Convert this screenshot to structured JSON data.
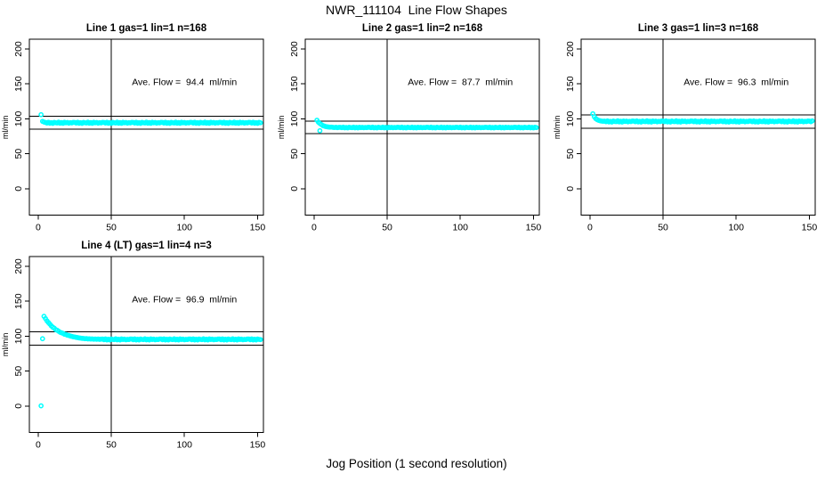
{
  "figure": {
    "title": "NWR_111104  Line Flow Shapes",
    "xlabel": "Jog Position (1 second resolution)",
    "background": "#ffffff",
    "point_color": "#00ffff",
    "axis_color": "#000000"
  },
  "chart_data": [
    {
      "type": "scatter",
      "title": "Line 1 gas=1 lin=1 n=168",
      "annotation": "Ave. Flow =  94.4  ml/min",
      "ave_flow": 94.4,
      "ylabel": "ml/min",
      "x_ticks": [
        0,
        50,
        100,
        150
      ],
      "y_ticks": [
        0,
        50,
        100,
        150,
        200
      ],
      "xlim": [
        -6,
        154
      ],
      "ylim": [
        -38,
        214
      ],
      "ref_hlines": [
        103.8,
        85.0
      ],
      "ref_vline": 50,
      "legend": null,
      "grid": false,
      "special_points": [
        [
          2,
          106.0
        ]
      ],
      "x_start": 3,
      "x_step": 1,
      "y_values": [
        96.5,
        95.4,
        94.9,
        94.0,
        95.2,
        93.7,
        94.6,
        93.5,
        95.0,
        94.4,
        94.1,
        95.3,
        93.8,
        94.7,
        93.6,
        95.1,
        94.3,
        94.8,
        93.9,
        94.5,
        94.2,
        95.0,
        94.9,
        94.0,
        95.2,
        93.7,
        94.6,
        93.5,
        95.0,
        94.4,
        94.1,
        95.3,
        93.8,
        94.7,
        93.6,
        95.1,
        94.3,
        94.8,
        93.9,
        94.5,
        94.2,
        95.0,
        94.9,
        94.0,
        95.2,
        93.7,
        94.6,
        93.5,
        95.0,
        94.4,
        94.1,
        95.3,
        93.8,
        94.7,
        93.6,
        95.1,
        94.3,
        94.8,
        93.9,
        94.5,
        94.2,
        95.0,
        94.9,
        94.0,
        95.2,
        93.7,
        94.6,
        93.5,
        95.0,
        94.4,
        94.1,
        95.3,
        93.8,
        94.7,
        93.6,
        95.1,
        94.3,
        94.8,
        93.9,
        94.5,
        94.2,
        95.0,
        94.9,
        94.0,
        95.2,
        93.7,
        94.6,
        93.5,
        95.0,
        94.4,
        94.1,
        95.3,
        93.8,
        94.7,
        93.6,
        95.1,
        94.3,
        94.8,
        93.9,
        94.5,
        94.2,
        95.0,
        94.9,
        94.0,
        95.2,
        93.7,
        94.6,
        93.5,
        95.0,
        94.4,
        94.1,
        95.3,
        93.8,
        94.7,
        93.6,
        95.1,
        94.3,
        94.8,
        93.9,
        94.5,
        94.2,
        95.0,
        94.9,
        94.0,
        95.2,
        93.7,
        94.6,
        93.5,
        95.0,
        94.4,
        94.1,
        95.3,
        93.8,
        94.7,
        93.6,
        95.1,
        94.3,
        94.8,
        93.9,
        94.5,
        94.2,
        95.0,
        94.9,
        94.0,
        95.2,
        93.7,
        94.6,
        93.5,
        95.0,
        94.4
      ]
    },
    {
      "type": "scatter",
      "title": "Line 2 gas=1 lin=2 n=168",
      "annotation": "Ave. Flow =  87.7  ml/min",
      "ave_flow": 87.7,
      "ylabel": "ml/min",
      "x_ticks": [
        0,
        50,
        100,
        150
      ],
      "y_ticks": [
        0,
        50,
        100,
        150,
        200
      ],
      "xlim": [
        -6,
        154
      ],
      "ylim": [
        -38,
        214
      ],
      "ref_hlines": [
        96.5,
        78.9
      ],
      "ref_vline": 50,
      "legend": null,
      "grid": false,
      "special_points": [
        [
          4,
          83.0
        ]
      ],
      "x_start": 2,
      "x_step": 1,
      "y_values": [
        98.1,
        95.2,
        93.4,
        91.9,
        90.4,
        89.7,
        89.0,
        88.6,
        88.3,
        88.1,
        88.2,
        87.8,
        87.6,
        88.0,
        87.4,
        87.9,
        87.9,
        87.4,
        88.1,
        87.2,
        87.7,
        87.1,
        88.0,
        87.6,
        87.4,
        88.1,
        87.2,
        87.8,
        87.1,
        88.0,
        87.5,
        87.8,
        87.3,
        87.7,
        87.5,
        88.0,
        87.9,
        87.4,
        88.1,
        87.2,
        87.7,
        87.1,
        88.0,
        87.6,
        87.4,
        88.1,
        87.2,
        87.8,
        87.1,
        88.0,
        87.5,
        87.8,
        87.3,
        87.7,
        87.5,
        88.0,
        87.9,
        87.4,
        88.1,
        87.2,
        87.7,
        87.1,
        88.0,
        87.6,
        87.4,
        88.1,
        87.2,
        87.8,
        87.1,
        88.0,
        87.5,
        87.8,
        87.3,
        87.7,
        87.5,
        88.0,
        87.9,
        87.4,
        88.1,
        87.2,
        87.7,
        87.1,
        88.0,
        87.6,
        87.4,
        88.1,
        87.2,
        87.8,
        87.1,
        88.0,
        87.5,
        87.8,
        87.3,
        87.7,
        87.5,
        88.0,
        87.9,
        87.4,
        88.1,
        87.2,
        87.7,
        87.1,
        88.0,
        87.6,
        87.4,
        88.1,
        87.2,
        87.8,
        87.1,
        88.0,
        87.5,
        87.8,
        87.3,
        87.7,
        87.5,
        88.0,
        87.9,
        87.4,
        88.1,
        87.2,
        87.7,
        87.1,
        88.0,
        87.6,
        87.4,
        88.1,
        87.2,
        87.8,
        87.1,
        88.0,
        87.5,
        87.8,
        87.3,
        87.7,
        87.5,
        88.0,
        87.9,
        87.4,
        88.1,
        87.2,
        87.7,
        87.1,
        88.0,
        87.6,
        87.4,
        88.1,
        87.2,
        87.8,
        87.1,
        88.0,
        87.5
      ]
    },
    {
      "type": "scatter",
      "title": "Line 3 gas=1 lin=3 n=168",
      "annotation": "Ave. Flow =  96.3  ml/min",
      "ave_flow": 96.3,
      "ylabel": "ml/min",
      "x_ticks": [
        0,
        50,
        100,
        150
      ],
      "y_ticks": [
        0,
        50,
        100,
        150,
        200
      ],
      "xlim": [
        -6,
        154
      ],
      "ylim": [
        -38,
        214
      ],
      "ref_hlines": [
        105.9,
        86.7
      ],
      "ref_vline": 50,
      "legend": null,
      "grid": false,
      "special_points": [],
      "x_start": 2,
      "x_step": 1,
      "y_values": [
        107.3,
        103.0,
        100.3,
        98.8,
        97.8,
        97.2,
        96.8,
        96.6,
        96.8,
        95.9,
        97.1,
        95.6,
        96.5,
        95.5,
        96.9,
        96.3,
        96.0,
        97.2,
        95.7,
        96.6,
        95.5,
        97.0,
        96.2,
        96.7,
        95.8,
        96.4,
        96.1,
        96.9,
        96.8,
        95.9,
        97.1,
        95.6,
        96.5,
        95.5,
        96.9,
        96.3,
        96.0,
        97.2,
        95.7,
        96.6,
        95.5,
        97.0,
        96.2,
        96.7,
        95.8,
        96.4,
        96.1,
        96.9,
        96.8,
        95.9,
        97.1,
        95.6,
        96.5,
        95.5,
        96.9,
        96.3,
        96.0,
        97.2,
        95.7,
        96.6,
        95.5,
        97.0,
        96.2,
        96.7,
        95.8,
        96.4,
        96.1,
        96.9,
        96.8,
        95.9,
        97.1,
        95.6,
        96.5,
        95.5,
        96.9,
        96.3,
        96.0,
        97.2,
        95.7,
        96.6,
        95.5,
        97.0,
        96.2,
        96.7,
        95.8,
        96.4,
        96.1,
        96.9,
        96.8,
        95.9,
        97.1,
        95.6,
        96.5,
        95.5,
        96.9,
        96.3,
        96.0,
        97.2,
        95.7,
        96.6,
        95.5,
        97.0,
        96.2,
        96.7,
        95.8,
        96.4,
        96.1,
        96.9,
        96.8,
        95.9,
        97.1,
        95.6,
        96.5,
        95.5,
        96.9,
        96.3,
        96.0,
        97.2,
        95.7,
        96.6,
        95.5,
        97.0,
        96.2,
        96.7,
        95.8,
        96.4,
        96.1,
        96.9,
        96.8,
        95.9,
        97.1,
        95.6,
        96.5,
        95.5,
        96.9,
        96.3,
        96.0,
        97.2,
        95.7,
        96.6,
        95.5,
        97.0,
        96.2,
        96.7,
        95.8,
        96.4,
        96.1,
        96.9,
        96.8,
        95.9,
        97.1
      ]
    },
    {
      "type": "scatter",
      "title": "Line 4 (LT) gas=1 lin=4 n=3",
      "annotation": "Ave. Flow =  96.9  ml/min",
      "ave_flow": 96.9,
      "ylabel": "ml/min",
      "x_ticks": [
        0,
        50,
        100,
        150
      ],
      "y_ticks": [
        0,
        50,
        100,
        150,
        200
      ],
      "xlim": [
        -6,
        154
      ],
      "ylim": [
        -38,
        214
      ],
      "ref_hlines": [
        106.6,
        87.2
      ],
      "ref_vline": 50,
      "legend": null,
      "grid": false,
      "special_points": [
        [
          2,
          0.3
        ],
        [
          3,
          96.4
        ]
      ],
      "x_start": 4,
      "x_step": 1,
      "y_values": [
        128.4,
        125.2,
        122.0,
        119.6,
        117.3,
        114.8,
        112.9,
        111.5,
        109.4,
        108.5,
        107.1,
        105.6,
        104.9,
        104.1,
        102.8,
        102.5,
        101.4,
        101.0,
        100.2,
        99.8,
        99.1,
        98.9,
        98.3,
        98.0,
        97.5,
        97.3,
        96.9,
        96.8,
        96.4,
        96.6,
        96.1,
        96.3,
        95.9,
        96.2,
        95.7,
        96.0,
        95.6,
        95.9,
        95.5,
        95.8,
        95.9,
        95.0,
        96.2,
        94.7,
        95.6,
        94.6,
        96.0,
        95.4,
        95.1,
        96.3,
        94.8,
        95.7,
        94.6,
        96.1,
        95.3,
        95.8,
        94.9,
        95.5,
        95.2,
        96.0,
        95.9,
        95.0,
        96.2,
        94.7,
        95.6,
        94.6,
        96.0,
        95.4,
        95.1,
        96.3,
        94.8,
        95.7,
        94.6,
        96.1,
        95.3,
        95.8,
        94.9,
        95.5,
        95.2,
        96.0,
        95.9,
        95.0,
        96.2,
        94.7,
        95.6,
        94.6,
        96.0,
        95.4,
        95.1,
        96.3,
        94.8,
        95.7,
        94.6,
        96.1,
        95.3,
        95.8,
        94.9,
        95.5,
        95.2,
        96.0,
        95.9,
        95.0,
        96.2,
        94.7,
        95.6,
        94.6,
        96.0,
        95.4,
        95.1,
        96.3,
        94.8,
        95.7,
        94.6,
        96.1,
        95.3,
        95.8,
        94.9,
        95.5,
        95.2,
        96.0,
        95.9,
        95.0,
        96.2,
        94.7,
        95.6,
        94.6,
        96.0,
        95.4,
        95.1,
        96.3,
        94.8,
        95.7,
        94.6,
        96.1,
        95.3,
        95.8,
        94.9,
        95.5,
        95.2,
        96.0,
        95.9,
        95.0,
        96.2,
        94.7,
        95.6,
        94.6,
        96.0,
        95.4,
        95.1
      ]
    }
  ]
}
